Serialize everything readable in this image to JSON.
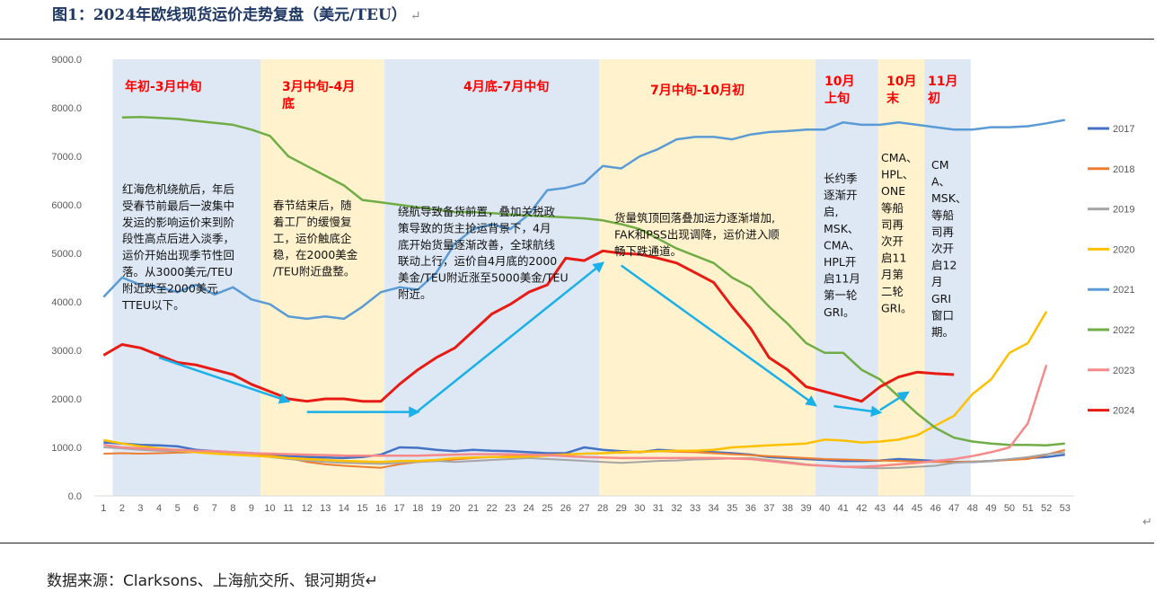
{
  "figure": {
    "title": "图1：2024年欧线现货运价走势复盘（美元/TEU）",
    "return_mark": "↵",
    "source": "数据来源：Clarksons、上海航交所、银河期货↵"
  },
  "colors": {
    "phase_blue": "#dde8f4",
    "phase_yellow": "#fff2cc",
    "arrow": "#1ab0e8",
    "phase_text": "#ff0000"
  },
  "phases": [
    {
      "start": 1.5,
      "end": 9.5,
      "color": "blue",
      "label": [
        "年初-3月中旬"
      ],
      "note": [
        "红海危机绕航后，年后",
        "受春节前最后一波集中",
        "发运的影响运价来到阶",
        "段性高点后进入淡季，",
        "运价开始出现季节性回",
        "落。从3000美元/TEU",
        "附近跌至2000美元",
        "TTEU以下。"
      ]
    },
    {
      "start": 9.5,
      "end": 16.2,
      "color": "yellow",
      "label": [
        "3月中旬-4月",
        "底"
      ],
      "note": [
        "春节结束后，随",
        "着工厂的缓慢复",
        "工，运价触底企",
        "稳，在2000美金",
        "/TEU附近盘整。"
      ]
    },
    {
      "start": 16.2,
      "end": 27.8,
      "color": "blue",
      "label": [
        "4月底-7月中旬"
      ],
      "note": [
        "绕航导致备货前置，叠加关税政",
        "策导致的货主抢运背景下，4月",
        "底开始货量逐渐改善，全球航线",
        "联动上行，运价自4月底的2000",
        "美金/TEU附近涨至5000美金/TEU",
        "附近。"
      ]
    },
    {
      "start": 27.8,
      "end": 39.5,
      "color": "yellow",
      "label": [
        "7月中旬-10月初"
      ],
      "note": [
        "货量筑顶回落叠加运力逐渐增加,",
        "FAK和PSS出现调降，运价进入顺",
        "畅下跌通道。"
      ]
    },
    {
      "start": 39.5,
      "end": 42.9,
      "color": "blue",
      "label": [
        "10月",
        "上旬"
      ],
      "note": [
        "长约季",
        "逐渐开",
        "启,",
        "MSK、",
        "CMA、",
        "HPL开",
        "启11月",
        "第一轮",
        "GRI。"
      ]
    },
    {
      "start": 42.9,
      "end": 45.4,
      "color": "yellow",
      "label": [
        "10月",
        "末"
      ],
      "note": [
        "CMA、",
        "HPL、",
        "ONE",
        "等船",
        "司再",
        "次开",
        "启11",
        "月第",
        "二轮",
        "GRI。"
      ]
    },
    {
      "start": 45.4,
      "end": 47.9,
      "color": "blue",
      "label": [
        "11月",
        "初"
      ],
      "note": [
        "CM",
        "A、",
        "MSK、",
        "等船",
        "司再",
        "次开",
        "启12",
        "月",
        "GRI",
        "窗口",
        "期。"
      ]
    }
  ],
  "chart_data": {
    "type": "line",
    "x": [
      1,
      2,
      3,
      4,
      5,
      6,
      7,
      8,
      9,
      10,
      11,
      12,
      13,
      14,
      15,
      16,
      17,
      18,
      19,
      20,
      21,
      22,
      23,
      24,
      25,
      26,
      27,
      28,
      29,
      30,
      31,
      32,
      33,
      34,
      35,
      36,
      37,
      38,
      39,
      40,
      41,
      42,
      43,
      44,
      45,
      46,
      47,
      48,
      49,
      50,
      51,
      52,
      53
    ],
    "x_ticks": [
      "1",
      "2",
      "3",
      "4",
      "5",
      "6",
      "7",
      "8",
      "9",
      "10",
      "11",
      "12",
      "13",
      "14",
      "15",
      "16",
      "17",
      "18",
      "19",
      "20",
      "21",
      "22",
      "23",
      "24",
      "25",
      "26",
      "27",
      "28",
      "29",
      "30",
      "31",
      "32",
      "33",
      "34",
      "35",
      "36",
      "37",
      "38",
      "39",
      "40",
      "41",
      "42",
      "43",
      "44",
      "45",
      "46",
      "47",
      "48",
      "49",
      "50",
      "51",
      "52",
      "53"
    ],
    "y_ticks": [
      "0.0",
      "1000.0",
      "2000.0",
      "3000.0",
      "4000.0",
      "5000.0",
      "6000.0",
      "7000.0",
      "8000.0",
      "9000.0"
    ],
    "ylim": [
      0,
      9000
    ],
    "legend_position": "right",
    "grid": false,
    "series": [
      {
        "name": "2017",
        "color": "#4472c4",
        "width": 2.5,
        "values": [
          1100,
          1080,
          1050,
          1040,
          1020,
          950,
          920,
          900,
          880,
          850,
          820,
          800,
          790,
          780,
          800,
          850,
          1000,
          990,
          950,
          920,
          950,
          930,
          920,
          900,
          880,
          880,
          1000,
          950,
          920,
          900,
          950,
          930,
          920,
          900,
          880,
          850,
          800,
          780,
          760,
          740,
          720,
          720,
          730,
          760,
          740,
          720,
          700,
          700,
          720,
          750,
          780,
          800,
          850
        ]
      },
      {
        "name": "2018",
        "color": "#ed7d31",
        "width": 2,
        "values": [
          870,
          880,
          870,
          880,
          890,
          900,
          880,
          860,
          850,
          830,
          780,
          700,
          650,
          620,
          600,
          580,
          650,
          700,
          720,
          750,
          780,
          800,
          820,
          840,
          850,
          860,
          870,
          880,
          890,
          900,
          920,
          910,
          900,
          880,
          860,
          840,
          820,
          800,
          780,
          760,
          750,
          740,
          730,
          720,
          710,
          700,
          700,
          710,
          720,
          740,
          760,
          850,
          950
        ]
      },
      {
        "name": "2019",
        "color": "#a5a5a5",
        "width": 2,
        "values": [
          1000,
          980,
          950,
          930,
          920,
          900,
          880,
          860,
          840,
          800,
          760,
          730,
          700,
          680,
          670,
          660,
          680,
          700,
          720,
          700,
          720,
          740,
          760,
          780,
          760,
          740,
          720,
          700,
          680,
          700,
          720,
          730,
          750,
          760,
          770,
          780,
          740,
          700,
          650,
          620,
          600,
          580,
          570,
          580,
          600,
          620,
          680,
          700,
          720,
          760,
          800,
          860,
          900
        ]
      },
      {
        "name": "2020",
        "color": "#ffc000",
        "width": 2.5,
        "values": [
          1150,
          1080,
          1020,
          980,
          940,
          900,
          870,
          850,
          830,
          810,
          780,
          760,
          740,
          720,
          710,
          700,
          720,
          720,
          740,
          780,
          790,
          800,
          800,
          810,
          830,
          850,
          870,
          880,
          900,
          910,
          920,
          930,
          930,
          950,
          1000,
          1020,
          1040,
          1060,
          1080,
          1160,
          1140,
          1100,
          1120,
          1160,
          1250,
          1450,
          1650,
          2100,
          2400,
          2950,
          3150,
          3800,
          null
        ]
      },
      {
        "name": "2021",
        "color": "#5b9bd5",
        "width": 2.5,
        "values": [
          4100,
          4500,
          4350,
          4300,
          4200,
          4350,
          4150,
          4300,
          4050,
          3950,
          3700,
          3650,
          3700,
          3650,
          3900,
          4200,
          4300,
          4250,
          4600,
          5200,
          5500,
          5600,
          5500,
          5800,
          6300,
          6350,
          6450,
          6800,
          6750,
          7000,
          7150,
          7350,
          7400,
          7400,
          7350,
          7450,
          7500,
          7520,
          7550,
          7550,
          7700,
          7650,
          7650,
          7700,
          7650,
          7600,
          7550,
          7550,
          7600,
          7600,
          7620,
          7680,
          7750
        ]
      },
      {
        "name": "2022",
        "color": "#70ad47",
        "width": 2.5,
        "values": [
          null,
          7800,
          7810,
          7790,
          7770,
          7730,
          7690,
          7650,
          7550,
          7420,
          7000,
          6800,
          6600,
          6400,
          6100,
          6050,
          6000,
          5950,
          5900,
          5850,
          5850,
          5830,
          5800,
          5780,
          5760,
          5740,
          5720,
          5680,
          5600,
          5500,
          5300,
          5100,
          4950,
          4800,
          4500,
          4300,
          3900,
          3550,
          3150,
          2950,
          2950,
          2600,
          2400,
          2050,
          1700,
          1400,
          1200,
          1120,
          1080,
          1050,
          1050,
          1040,
          1080
        ]
      },
      {
        "name": "2023",
        "color": "#f8898a",
        "width": 2.5,
        "values": [
          1050,
          1000,
          980,
          960,
          950,
          930,
          920,
          900,
          880,
          870,
          860,
          850,
          840,
          830,
          830,
          830,
          830,
          830,
          840,
          850,
          860,
          860,
          860,
          850,
          840,
          820,
          800,
          790,
          780,
          780,
          780,
          780,
          780,
          780,
          770,
          760,
          720,
          680,
          640,
          620,
          600,
          600,
          620,
          650,
          680,
          720,
          760,
          820,
          900,
          1000,
          1500,
          2700,
          null
        ]
      },
      {
        "name": "2024",
        "color": "#e81b14",
        "width": 3,
        "values": [
          2900,
          3120,
          3050,
          2900,
          2750,
          2700,
          2600,
          2500,
          2300,
          2150,
          2000,
          1950,
          2000,
          2000,
          1950,
          1950,
          2300,
          2600,
          2850,
          3050,
          3400,
          3750,
          3950,
          4200,
          4350,
          4900,
          4850,
          5050,
          5000,
          4980,
          4900,
          4800,
          4600,
          4400,
          3900,
          3450,
          2850,
          2600,
          2250,
          2150,
          2050,
          1950,
          2250,
          2450,
          2550,
          2520,
          2500,
          null,
          null,
          null,
          null,
          null,
          null
        ]
      }
    ],
    "arrows": [
      {
        "from": [
          4,
          2850
        ],
        "to": [
          11,
          1950
        ]
      },
      {
        "from": [
          12,
          1730
        ],
        "to": [
          18,
          1730
        ]
      },
      {
        "from": [
          18,
          1750
        ],
        "to": [
          28,
          4800
        ]
      },
      {
        "from": [
          29,
          4750
        ],
        "to": [
          39.5,
          1870
        ]
      },
      {
        "from": [
          40.5,
          1850
        ],
        "to": [
          43,
          1720
        ]
      },
      {
        "from": [
          43,
          1770
        ],
        "to": [
          44.5,
          2130
        ]
      }
    ]
  }
}
